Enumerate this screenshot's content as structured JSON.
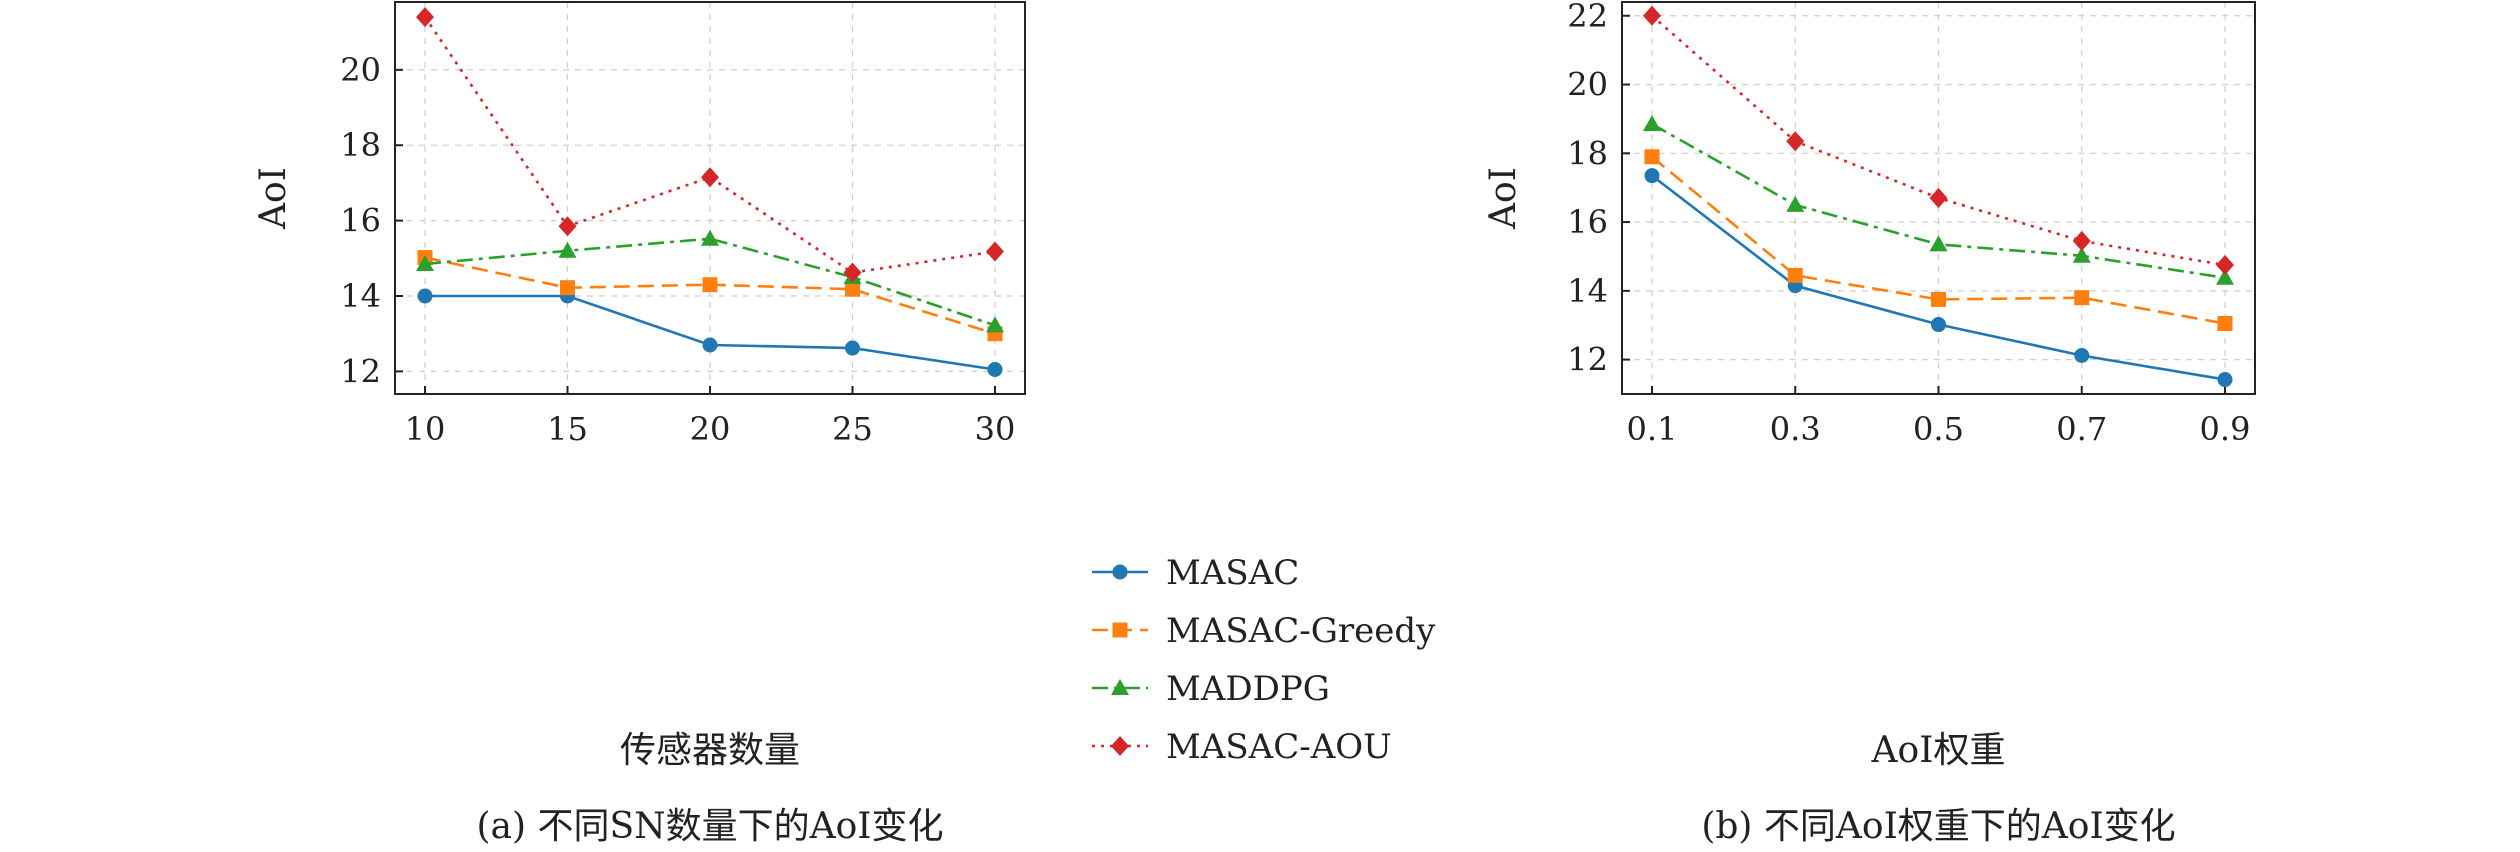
{
  "chart_data": [
    {
      "type": "line",
      "title": "",
      "caption": "(a) 不同SN数量下的AoI变化",
      "xlabel": "传感器数量",
      "ylabel": "AoI",
      "x": [
        10,
        15,
        20,
        25,
        30
      ],
      "xticks": [
        "10",
        "15",
        "20",
        "25",
        "30"
      ],
      "yticks": [
        "12",
        "14",
        "16",
        "18",
        "20"
      ],
      "ylim": [
        11.4,
        21.8
      ],
      "grid": true,
      "series": [
        {
          "name": "MASAC",
          "values": [
            14.0,
            14.0,
            12.7,
            12.62,
            12.05
          ],
          "color": "#1f77b4",
          "marker": "circle",
          "dash": "solid"
        },
        {
          "name": "MASAC-Greedy",
          "values": [
            15.02,
            14.22,
            14.3,
            14.18,
            13.0
          ],
          "color": "#ff7f0e",
          "marker": "square",
          "dash": "dashed"
        },
        {
          "name": "MADDPG",
          "values": [
            14.85,
            15.2,
            15.52,
            14.5,
            13.22
          ],
          "color": "#2ca02c",
          "marker": "triangle",
          "dash": "dashdot"
        },
        {
          "name": "MASAC-AOU",
          "values": [
            21.4,
            15.85,
            17.15,
            14.62,
            15.18
          ],
          "color": "#d62728",
          "marker": "diamond",
          "dash": "dotted"
        }
      ]
    },
    {
      "type": "line",
      "title": "",
      "caption": "(b) 不同AoI权重下的AoI变化",
      "xlabel": "AoI权重",
      "ylabel": "AoI",
      "x": [
        0.1,
        0.3,
        0.5,
        0.7,
        0.9
      ],
      "xticks": [
        "0.1",
        "0.3",
        "0.5",
        "0.7",
        "0.9"
      ],
      "yticks": [
        "12",
        "14",
        "16",
        "18",
        "20",
        "22"
      ],
      "ylim": [
        11.0,
        22.4
      ],
      "grid": true,
      "series": [
        {
          "name": "MASAC",
          "values": [
            17.35,
            14.15,
            13.02,
            12.12,
            11.42
          ],
          "color": "#1f77b4",
          "marker": "circle",
          "dash": "solid"
        },
        {
          "name": "MASAC-Greedy",
          "values": [
            17.9,
            14.45,
            13.75,
            13.8,
            13.05
          ],
          "color": "#ff7f0e",
          "marker": "square",
          "dash": "dashed"
        },
        {
          "name": "MADDPG",
          "values": [
            18.85,
            16.5,
            15.35,
            15.02,
            14.38
          ],
          "color": "#2ca02c",
          "marker": "triangle",
          "dash": "dashdot"
        },
        {
          "name": "MASAC-AOU",
          "values": [
            22.0,
            18.35,
            16.7,
            15.45,
            14.75
          ],
          "color": "#d62728",
          "marker": "diamond",
          "dash": "dotted"
        }
      ]
    }
  ],
  "legend": {
    "placement": "center",
    "entries": [
      "MASAC",
      "MASAC-Greedy",
      "MADDPG",
      "MASAC-AOU"
    ]
  }
}
